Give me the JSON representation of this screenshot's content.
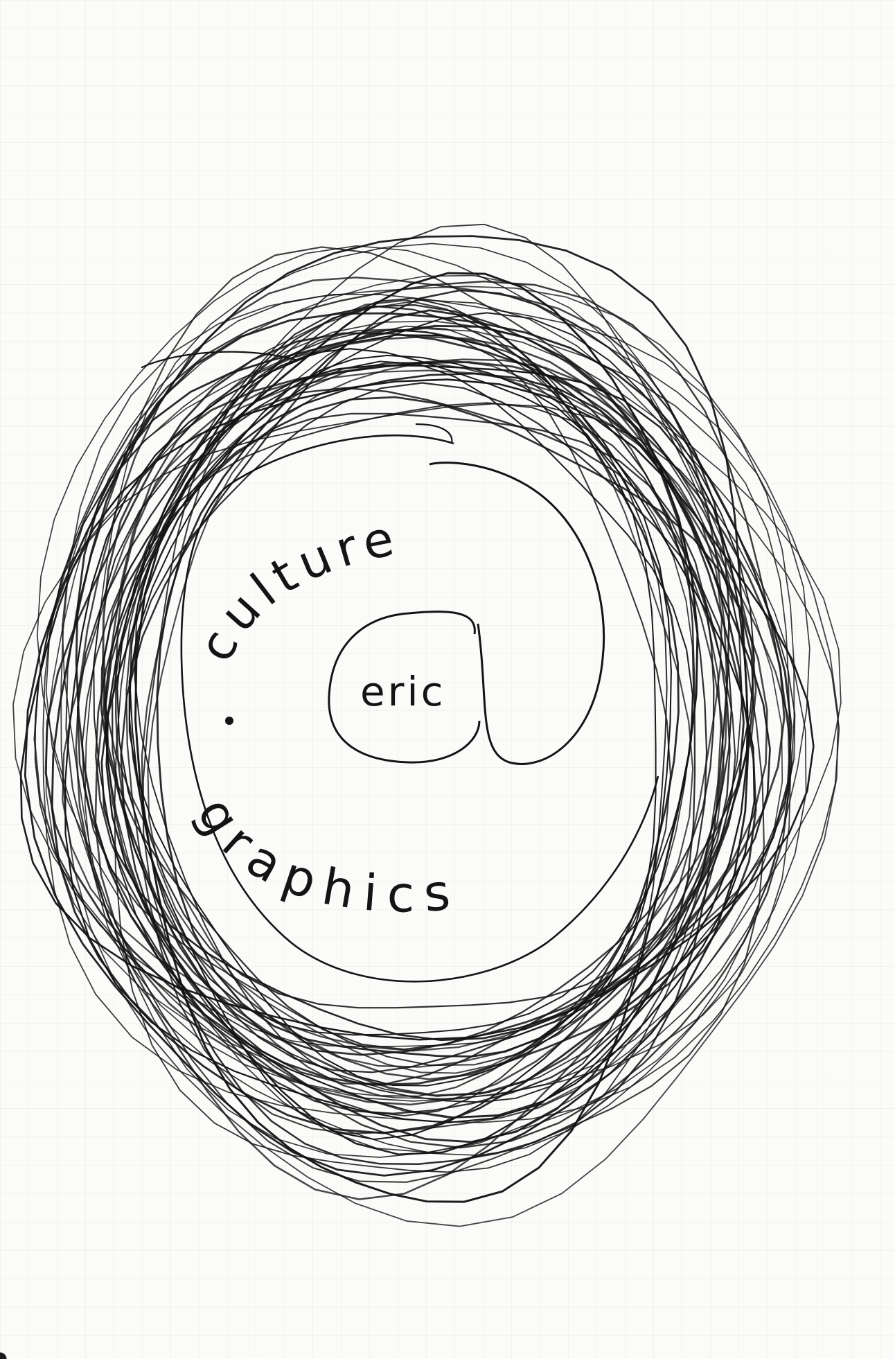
{
  "sketch": {
    "word_top": "culture",
    "word_center": "eric",
    "word_bottom": "graphics",
    "ink_color": "#141414",
    "paper_color": "#fbfbfa"
  }
}
